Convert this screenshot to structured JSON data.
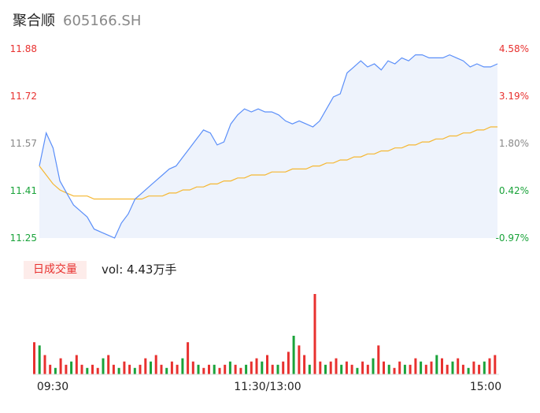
{
  "header": {
    "name": "聚合顺",
    "code": "605166.SH"
  },
  "volume": {
    "tag": "日成交量",
    "text": "vol: 4.43万手"
  },
  "colors": {
    "price": "#5b8ff9",
    "avg": "#f5b731",
    "up": "#e8312f",
    "down": "#1aa33a",
    "neutral": "#888888"
  },
  "chart_data": {
    "type": "line",
    "y_price_ticks": [
      "11.88",
      "11.72",
      "11.57",
      "11.41",
      "11.25"
    ],
    "y_pct_ticks": [
      "4.58%",
      "3.19%",
      "1.80%",
      "0.42%",
      "-0.97%"
    ],
    "x_ticks": [
      "09:30",
      "11:30/13:00",
      "15:00"
    ],
    "ylim": [
      11.25,
      11.88
    ],
    "prev_close": 11.36,
    "series": [
      {
        "key": "price",
        "values": [
          11.49,
          11.6,
          11.55,
          11.44,
          11.4,
          11.36,
          11.34,
          11.32,
          11.28,
          11.27,
          11.26,
          11.25,
          11.3,
          11.33,
          11.38,
          11.4,
          11.42,
          11.44,
          11.46,
          11.48,
          11.49,
          11.52,
          11.55,
          11.58,
          11.61,
          11.6,
          11.56,
          11.57,
          11.63,
          11.66,
          11.68,
          11.67,
          11.68,
          11.67,
          11.67,
          11.66,
          11.64,
          11.63,
          11.64,
          11.63,
          11.62,
          11.64,
          11.68,
          11.72,
          11.73,
          11.8,
          11.82,
          11.84,
          11.82,
          11.83,
          11.81,
          11.84,
          11.83,
          11.85,
          11.84,
          11.86,
          11.86,
          11.85,
          11.85,
          11.85,
          11.86,
          11.85,
          11.84,
          11.82,
          11.83,
          11.82,
          11.82,
          11.83
        ]
      },
      {
        "key": "avg",
        "values": [
          11.49,
          11.46,
          11.43,
          11.41,
          11.4,
          11.39,
          11.39,
          11.39,
          11.38,
          11.38,
          11.38,
          11.38,
          11.38,
          11.38,
          11.38,
          11.38,
          11.39,
          11.39,
          11.39,
          11.4,
          11.4,
          11.41,
          11.41,
          11.42,
          11.42,
          11.43,
          11.43,
          11.44,
          11.44,
          11.45,
          11.45,
          11.46,
          11.46,
          11.46,
          11.47,
          11.47,
          11.47,
          11.48,
          11.48,
          11.48,
          11.49,
          11.49,
          11.5,
          11.5,
          11.51,
          11.51,
          11.52,
          11.52,
          11.53,
          11.53,
          11.54,
          11.54,
          11.55,
          11.55,
          11.56,
          11.56,
          11.57,
          11.57,
          11.58,
          11.58,
          11.59,
          11.59,
          11.6,
          11.6,
          11.61,
          11.61,
          11.62,
          11.62
        ]
      }
    ],
    "volumes": [
      10,
      9,
      6,
      3,
      2,
      5,
      3,
      4,
      6,
      3,
      2,
      3,
      2,
      5,
      6,
      3,
      2,
      4,
      3,
      2,
      3,
      5,
      4,
      6,
      3,
      2,
      4,
      3,
      5,
      10,
      4,
      3,
      2,
      3,
      3,
      2,
      3,
      4,
      3,
      2,
      3,
      4,
      5,
      4,
      6,
      3,
      3,
      4,
      7,
      12,
      9,
      6,
      3,
      25,
      4,
      3,
      4,
      5,
      3,
      4,
      3,
      2,
      4,
      3,
      5,
      9,
      4,
      3,
      2,
      4,
      3,
      3,
      5,
      4,
      3,
      4,
      6,
      5,
      3,
      4,
      5,
      3,
      2,
      4,
      3,
      4,
      5,
      6
    ]
  }
}
